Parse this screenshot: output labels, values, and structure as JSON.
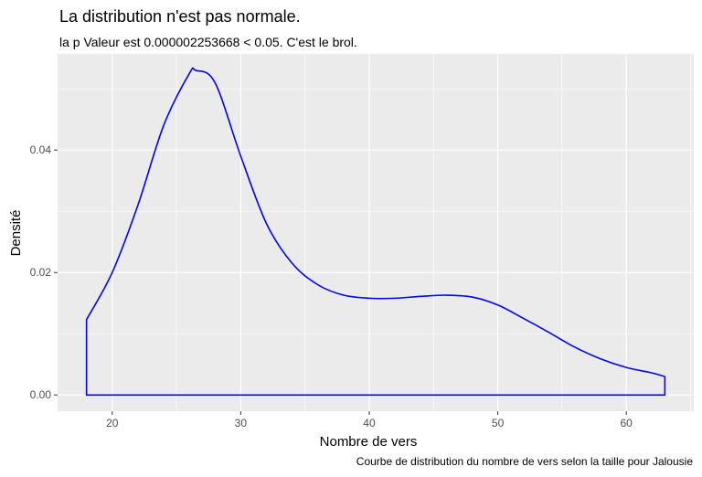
{
  "chart_data": {
    "type": "area",
    "title": "La distribution n'est pas normale.",
    "subtitle": "la p Valeur est  0.000002253668  < 0.05. C'est le brol.",
    "xlabel": "Nombre de vers",
    "ylabel": "Densité",
    "caption": "Courbe de distribution du nombre de vers selon la taille pour  Jalousie",
    "xlim": [
      15.75,
      65.25
    ],
    "ylim": [
      -0.00265,
      0.0557
    ],
    "x_ticks": [
      20,
      30,
      40,
      50,
      60
    ],
    "y_ticks": [
      0.0,
      0.02,
      0.04
    ],
    "x_tick_labels": [
      "20",
      "30",
      "40",
      "50",
      "60"
    ],
    "y_tick_labels": [
      "0.00",
      "0.02",
      "0.04"
    ],
    "grid": true,
    "line_color": "#0000ff",
    "fill": "none",
    "series": [
      {
        "x": [
          18,
          20,
          22,
          24,
          26,
          26.5,
          28,
          30,
          32,
          34,
          36,
          38,
          40,
          42,
          44,
          46,
          48,
          50,
          52,
          54,
          56,
          58,
          60,
          62,
          63
        ],
        "y": [
          0.0123,
          0.02,
          0.031,
          0.044,
          0.0525,
          0.053,
          0.051,
          0.039,
          0.028,
          0.0215,
          0.018,
          0.0163,
          0.0158,
          0.0158,
          0.0161,
          0.0163,
          0.016,
          0.0147,
          0.0125,
          0.0102,
          0.0078,
          0.0059,
          0.0045,
          0.0036,
          0.003
        ]
      }
    ]
  },
  "colors": {
    "panel_background": "#ebebeb",
    "grid": "#ffffff",
    "line": "#0000ff"
  }
}
